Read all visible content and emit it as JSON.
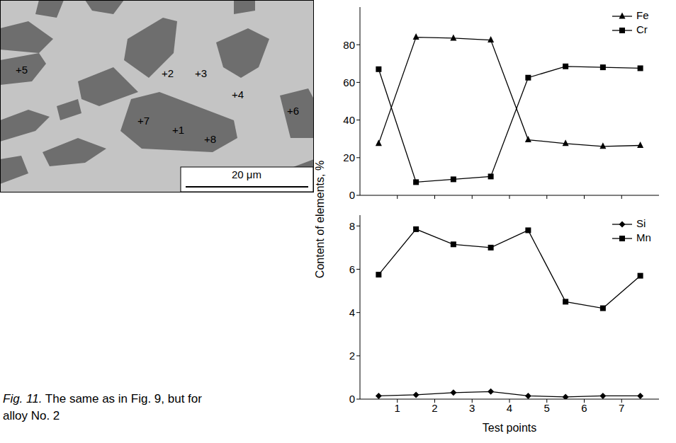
{
  "chart_data": [
    {
      "type": "line",
      "x": [
        0.5,
        1.5,
        2.5,
        3.5,
        4.5,
        5.5,
        6.5,
        7.5
      ],
      "series": [
        {
          "name": "Fe",
          "color": "#000000",
          "marker": "triangle",
          "values": [
            27.5,
            84,
            83.5,
            82.5,
            29.5,
            27.5,
            26,
            26.5
          ]
        },
        {
          "name": "Cr",
          "color": "#000000",
          "marker": "square",
          "values": [
            67,
            7,
            8.5,
            10,
            62.5,
            68.5,
            68,
            67.5
          ]
        }
      ],
      "xlim": [
        0,
        8
      ],
      "xticks": [
        1,
        2,
        3,
        4,
        5,
        6,
        7
      ],
      "ylim": [
        0,
        100
      ],
      "yticks": [
        0,
        20,
        40,
        60,
        80
      ],
      "tick_labels": "y",
      "legend": "top-right",
      "grid": false
    },
    {
      "type": "line",
      "x": [
        0.5,
        1.5,
        2.5,
        3.5,
        4.5,
        5.5,
        6.5,
        7.5
      ],
      "series": [
        {
          "name": "Si",
          "color": "#000000",
          "marker": "diamond",
          "values": [
            0.15,
            0.2,
            0.3,
            0.35,
            0.15,
            0.1,
            0.15,
            0.15
          ]
        },
        {
          "name": "Mn",
          "color": "#000000",
          "marker": "square",
          "values": [
            5.75,
            7.85,
            7.15,
            7.0,
            7.8,
            4.5,
            4.2,
            5.7
          ]
        }
      ],
      "xlabel": "Test points",
      "xlim": [
        0,
        8
      ],
      "xticks": [
        1,
        2,
        3,
        4,
        5,
        6,
        7
      ],
      "ylim": [
        0,
        8.5
      ],
      "yticks": [
        0,
        2,
        4,
        6,
        8
      ],
      "legend": "top-right",
      "grid": false
    }
  ],
  "shared_ylabel": "Content of elements, %",
  "micrograph": {
    "point_labels": [
      "+1",
      "+2",
      "+3",
      "+4",
      "+5",
      "+6",
      "+7",
      "+8"
    ],
    "scale_bar": "20 μm"
  },
  "caption": {
    "label": "Fig. 11.",
    "text": "The same as in Fig. 9, but for alloy No. 2"
  }
}
